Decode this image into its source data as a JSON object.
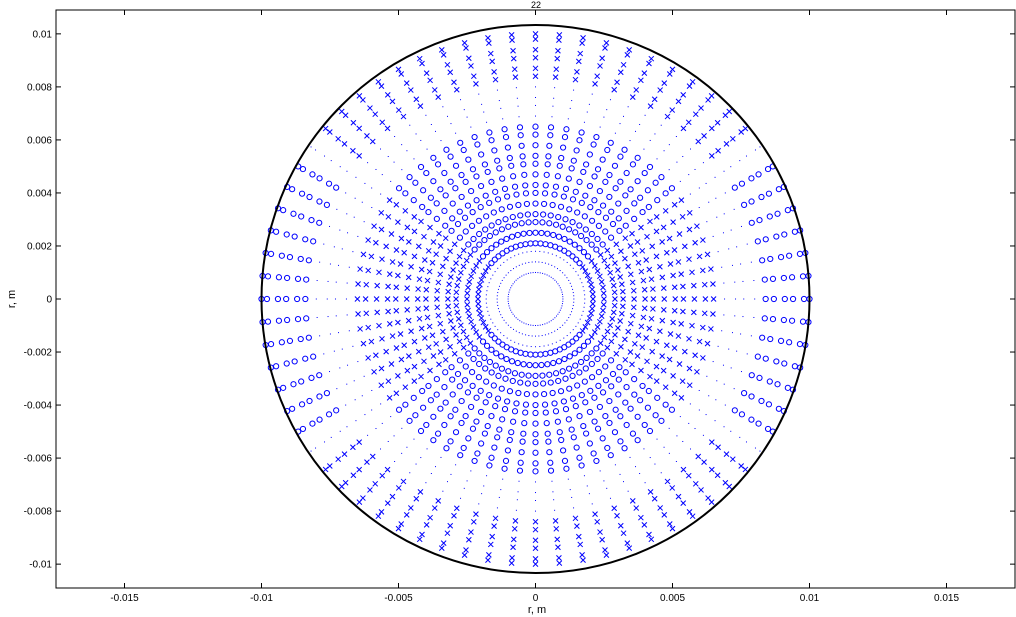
{
  "chart_data": {
    "type": "scatter",
    "title": "22",
    "xlabel": "r, m",
    "ylabel": "r, m",
    "xlim": [
      -0.0175,
      0.0175
    ],
    "ylim": [
      -0.0109,
      0.0109
    ],
    "xticks": [
      -0.015,
      -0.01,
      -0.005,
      0,
      0.005,
      0.01,
      0.015
    ],
    "xtick_labels": [
      "-0.015",
      "-0.01",
      "-0.005",
      "0",
      "0.005",
      "0.01",
      "0.015"
    ],
    "yticks": [
      0.01,
      0.008,
      0.006,
      0.004,
      0.002,
      0,
      -0.002,
      -0.004,
      -0.006,
      -0.008,
      -0.01
    ],
    "ytick_labels": [
      "0.01",
      "0.008",
      "0.006",
      "0.004",
      "0.002",
      "0",
      "-0.002",
      "-0.004",
      "-0.006",
      "-0.008",
      "-0.01"
    ],
    "grid": false,
    "boundary_circle": {
      "radius": 0.01,
      "color": "#000000"
    },
    "marker_color": "#0000ff",
    "mesh": {
      "ring_radii": [
        0.001,
        0.0014,
        0.0018,
        0.0021,
        0.0025,
        0.0029,
        0.0032,
        0.0036,
        0.004,
        0.0043,
        0.0047,
        0.0051,
        0.0054,
        0.0058,
        0.0062,
        0.0065,
        0.0069,
        0.0073,
        0.0076,
        0.008,
        0.0084,
        0.0087,
        0.0091,
        0.0094,
        0.0098,
        0.01
      ],
      "points_per_ring": 72
    },
    "series": [
      {
        "marker": "o",
        "rules": [
          {
            "r_min": 0.0019,
            "r_max": 0.0066,
            "angle_center_deg": 90,
            "angle_half_width_deg": 50,
            "symmetric_180": true
          },
          {
            "r_min": 0.0082,
            "r_max": 0.01,
            "angle_center_deg": 0,
            "angle_half_width_deg": 31,
            "symmetric_180": true
          }
        ]
      },
      {
        "marker": "x",
        "rules": [
          {
            "r_min": 0.0019,
            "r_max": 0.0066,
            "angle_center_deg": 0,
            "angle_half_width_deg": 39,
            "symmetric_180": true
          },
          {
            "r_min": 0.0084,
            "r_max": 0.01,
            "angle_center_deg": 90,
            "angle_half_width_deg": 50,
            "symmetric_180": true
          }
        ]
      },
      {
        "marker": ".",
        "rules": [
          {
            "default": true
          }
        ]
      }
    ]
  }
}
